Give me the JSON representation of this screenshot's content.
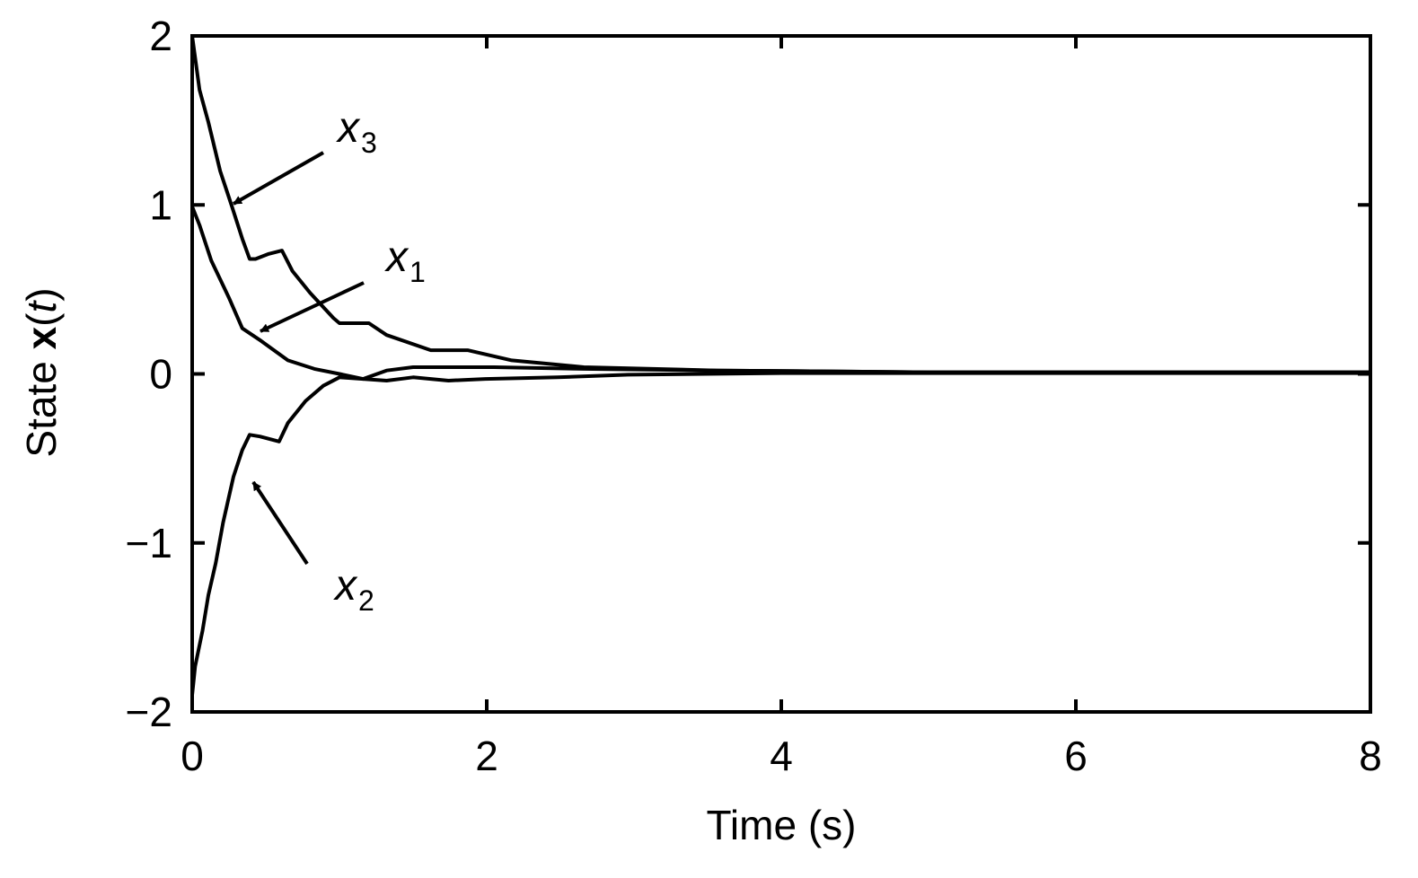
{
  "chart_data": {
    "type": "line",
    "title": "",
    "xlabel": "Time (s)",
    "ylabel_prefix": "State ",
    "ylabel_bold": "x",
    "ylabel_open": "(",
    "ylabel_italic": "t",
    "ylabel_close": ")",
    "xlim": [
      0,
      8
    ],
    "ylim": [
      -2,
      2
    ],
    "xticks": [
      0,
      2,
      4,
      6,
      8
    ],
    "xtick_labels": [
      "0",
      "2",
      "4",
      "6",
      "8"
    ],
    "yticks": [
      -2,
      -1,
      0,
      1,
      2
    ],
    "ytick_labels": [
      "−2",
      "−1",
      "0",
      "1",
      "2"
    ],
    "grid": false,
    "line_color": "#000000",
    "series": [
      {
        "name": "x3",
        "label_base": "x",
        "label_sub": "3",
        "x": [
          0,
          0.05,
          0.11,
          0.19,
          0.27,
          0.34,
          0.39,
          0.43,
          0.52,
          0.61,
          0.68,
          0.8,
          0.96,
          1.0,
          1.2,
          1.32,
          1.62,
          1.87,
          2.17,
          2.66,
          3.57,
          5,
          8
        ],
        "y": [
          2,
          1.68,
          1.49,
          1.2,
          0.99,
          0.8,
          0.68,
          0.68,
          0.71,
          0.73,
          0.61,
          0.48,
          0.33,
          0.3,
          0.3,
          0.23,
          0.14,
          0.14,
          0.08,
          0.04,
          0.02,
          0.01,
          0.01
        ]
      },
      {
        "name": "x1",
        "label_base": "x",
        "label_sub": "1",
        "x": [
          0,
          0.05,
          0.13,
          0.25,
          0.34,
          0.46,
          0.65,
          0.83,
          1.0,
          1.16,
          1.32,
          1.5,
          1.74,
          1.99,
          2.48,
          2.96,
          4,
          8
        ],
        "y": [
          0.99,
          0.88,
          0.67,
          0.45,
          0.27,
          0.2,
          0.08,
          0.03,
          0,
          -0.03,
          -0.04,
          -0.02,
          -0.04,
          -0.03,
          -0.02,
          -0.005,
          0.005,
          0.005
        ]
      },
      {
        "name": "x2",
        "label_base": "x",
        "label_sub": "2",
        "x": [
          0,
          0.02,
          0.07,
          0.11,
          0.16,
          0.21,
          0.28,
          0.34,
          0.39,
          0.46,
          0.59,
          0.65,
          0.77,
          0.89,
          1.0,
          1.16,
          1.32,
          1.5,
          2.05,
          2.66,
          3.57,
          5,
          8
        ],
        "y": [
          -1.9,
          -1.73,
          -1.52,
          -1.31,
          -1.12,
          -0.88,
          -0.61,
          -0.45,
          -0.36,
          -0.37,
          -0.4,
          -0.29,
          -0.16,
          -0.07,
          -0.02,
          -0.03,
          0.02,
          0.04,
          0.04,
          0.03,
          0.02,
          0.01,
          0.01
        ]
      }
    ]
  }
}
